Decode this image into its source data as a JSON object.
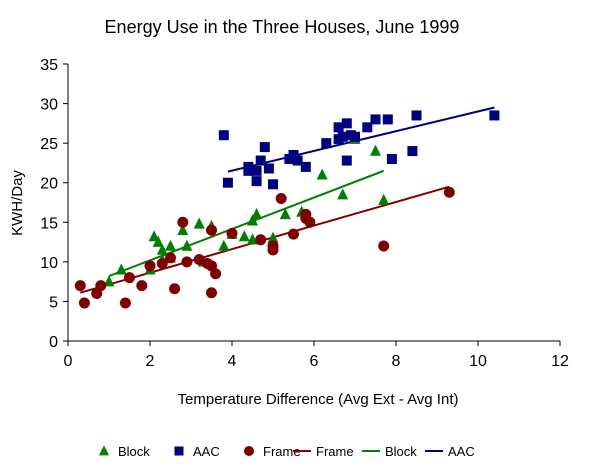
{
  "chart_data": {
    "type": "scatter",
    "title": "Energy Use in the Three Houses, June 1999",
    "xlabel": "Temperature Difference (Avg Ext - Avg Int)",
    "ylabel": "KWH/Day",
    "xlim": [
      0,
      12
    ],
    "ylim": [
      0,
      35
    ],
    "x_ticks": [
      "0",
      "2",
      "4",
      "6",
      "8",
      "10",
      "12"
    ],
    "y_ticks": [
      "0",
      "5",
      "10",
      "15",
      "20",
      "25",
      "30",
      "35"
    ],
    "grid": false,
    "legend_position": "bottom",
    "legend": [
      "Block",
      "AAC",
      "Frame",
      "Frame",
      "Block",
      "AAC"
    ],
    "series": [
      {
        "name": "Block",
        "kind": "markers",
        "marker": "triangle",
        "color": "#008000",
        "points": [
          [
            1.0,
            7.5
          ],
          [
            1.3,
            9.0
          ],
          [
            2.0,
            9.0
          ],
          [
            2.1,
            13.2
          ],
          [
            2.2,
            12.5
          ],
          [
            2.3,
            10.2
          ],
          [
            2.3,
            11.5
          ],
          [
            2.5,
            12.0
          ],
          [
            2.5,
            10.5
          ],
          [
            2.8,
            14.0
          ],
          [
            2.9,
            12.0
          ],
          [
            3.2,
            14.8
          ],
          [
            3.3,
            10.0
          ],
          [
            3.5,
            14.5
          ],
          [
            3.8,
            12.0
          ],
          [
            4.0,
            13.5
          ],
          [
            4.3,
            13.2
          ],
          [
            4.5,
            15.2
          ],
          [
            4.5,
            12.8
          ],
          [
            4.6,
            16.0
          ],
          [
            5.0,
            13.0
          ],
          [
            5.3,
            16.0
          ],
          [
            5.7,
            16.3
          ],
          [
            6.2,
            21.0
          ],
          [
            6.7,
            18.5
          ],
          [
            7.0,
            25.5
          ],
          [
            7.5,
            24.0
          ],
          [
            7.7,
            17.8
          ]
        ]
      },
      {
        "name": "AAC",
        "kind": "markers",
        "marker": "square",
        "color": "#000080",
        "points": [
          [
            3.8,
            26.0
          ],
          [
            3.9,
            20.0
          ],
          [
            4.4,
            21.5
          ],
          [
            4.4,
            22.0
          ],
          [
            4.6,
            21.5
          ],
          [
            4.6,
            20.2
          ],
          [
            4.7,
            22.8
          ],
          [
            4.8,
            24.5
          ],
          [
            4.9,
            21.8
          ],
          [
            5.0,
            19.8
          ],
          [
            5.4,
            23.0
          ],
          [
            5.5,
            23.5
          ],
          [
            5.6,
            22.8
          ],
          [
            5.8,
            22.0
          ],
          [
            6.3,
            25.0
          ],
          [
            6.6,
            27.0
          ],
          [
            6.6,
            25.5
          ],
          [
            6.7,
            25.8
          ],
          [
            6.8,
            22.8
          ],
          [
            6.8,
            27.5
          ],
          [
            6.9,
            26.0
          ],
          [
            7.0,
            25.8
          ],
          [
            7.3,
            27.0
          ],
          [
            7.5,
            28.0
          ],
          [
            7.8,
            28.0
          ],
          [
            7.9,
            23.0
          ],
          [
            8.4,
            24.0
          ],
          [
            8.5,
            28.5
          ],
          [
            10.4,
            28.5
          ]
        ]
      },
      {
        "name": "Frame",
        "kind": "markers",
        "marker": "circle",
        "color": "#800000",
        "points": [
          [
            0.3,
            7.0
          ],
          [
            0.4,
            4.8
          ],
          [
            0.7,
            6.0
          ],
          [
            0.8,
            7.0
          ],
          [
            1.4,
            4.8
          ],
          [
            1.5,
            8.0
          ],
          [
            1.8,
            7.0
          ],
          [
            2.0,
            9.5
          ],
          [
            2.3,
            9.8
          ],
          [
            2.5,
            10.5
          ],
          [
            2.6,
            6.6
          ],
          [
            2.8,
            15.0
          ],
          [
            2.9,
            10.0
          ],
          [
            3.2,
            10.3
          ],
          [
            3.4,
            9.8
          ],
          [
            3.5,
            14.0
          ],
          [
            3.5,
            9.5
          ],
          [
            3.5,
            6.1
          ],
          [
            3.6,
            8.5
          ],
          [
            4.0,
            13.6
          ],
          [
            4.7,
            12.8
          ],
          [
            5.0,
            11.5
          ],
          [
            5.0,
            12.0
          ],
          [
            5.2,
            18.0
          ],
          [
            5.5,
            13.5
          ],
          [
            5.8,
            16.0
          ],
          [
            5.9,
            15.0
          ],
          [
            5.8,
            15.5
          ],
          [
            7.7,
            12.0
          ],
          [
            9.3,
            18.8
          ]
        ]
      },
      {
        "name": "Frame",
        "kind": "trendline",
        "color": "#800000",
        "points": [
          [
            0.3,
            6.1
          ],
          [
            9.3,
            19.5
          ]
        ]
      },
      {
        "name": "Block",
        "kind": "trendline",
        "color": "#008000",
        "points": [
          [
            1.0,
            8.2
          ],
          [
            7.7,
            21.5
          ]
        ]
      },
      {
        "name": "AAC",
        "kind": "trendline",
        "color": "#000080",
        "points": [
          [
            3.9,
            21.4
          ],
          [
            10.4,
            29.5
          ]
        ]
      }
    ]
  }
}
